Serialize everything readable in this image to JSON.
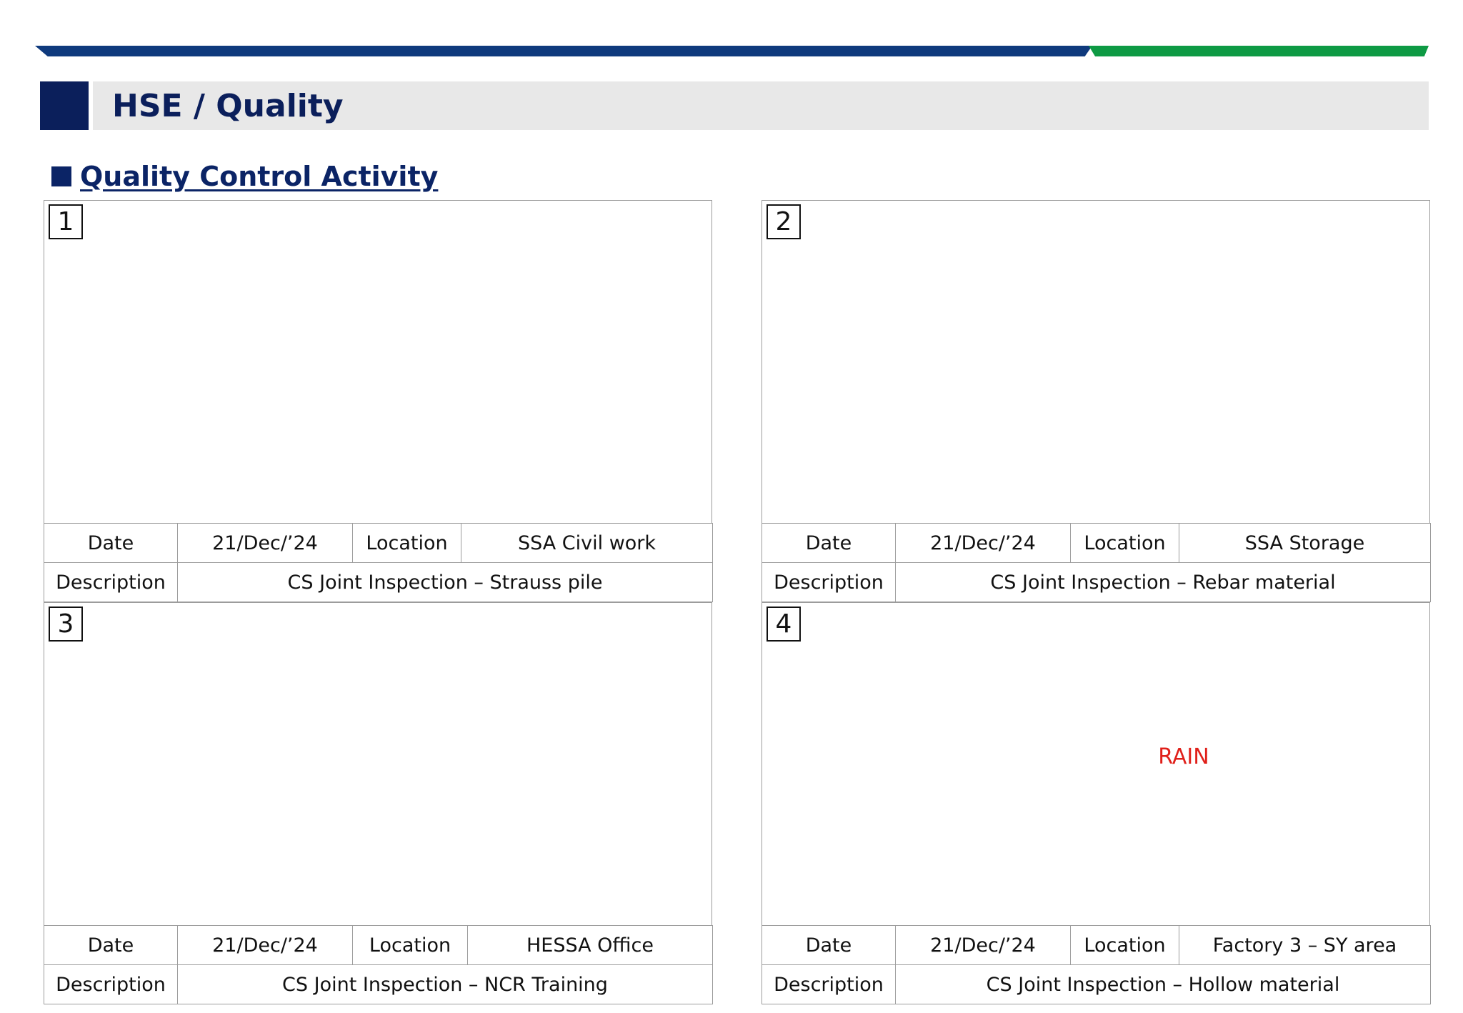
{
  "header": {
    "title": "HSE / Quality",
    "accent_colors": {
      "navy": "#0b1f5b",
      "blue_bar": "#0f3a7d",
      "green_bar": "#0e9a44",
      "title_band": "#e8e8e8"
    }
  },
  "section": {
    "title": "Quality Control Activity",
    "bullet_icon": "square-bullet"
  },
  "labels": {
    "date": "Date",
    "location": "Location",
    "description": "Description"
  },
  "panels": [
    {
      "number": "1",
      "date": "21/Dec/’24",
      "location": "SSA Civil work",
      "description": "CS Joint Inspection – Strauss pile",
      "overlay": ""
    },
    {
      "number": "2",
      "date": "21/Dec/’24",
      "location": "SSA Storage",
      "description": "CS Joint Inspection – Rebar material",
      "overlay": ""
    },
    {
      "number": "3",
      "date": "21/Dec/’24",
      "location": "HESSA Office",
      "description": "CS Joint Inspection – NCR Training",
      "overlay": ""
    },
    {
      "number": "4",
      "date": "21/Dec/’24",
      "location": "Factory 3 – SY area",
      "description": "CS Joint Inspection – Hollow material",
      "overlay": "RAIN",
      "overlay_color": "#e0201a"
    }
  ]
}
